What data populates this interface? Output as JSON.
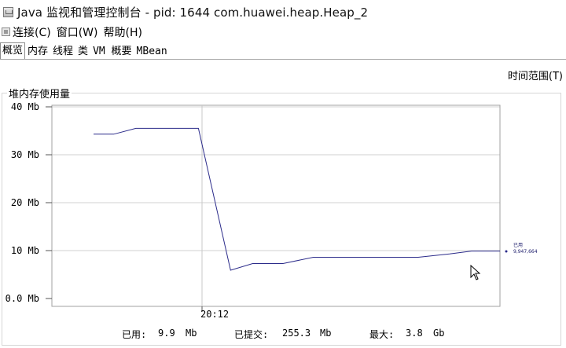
{
  "window": {
    "title": "Java 监视和管理控制台 - pid: 1644 com.huawei.heap.Heap_2"
  },
  "menu": {
    "items": [
      "连接(C)",
      "窗口(W)",
      "帮助(H)"
    ]
  },
  "tabs": [
    "概览",
    "内存",
    "线程",
    "类",
    "VM 概要",
    "MBean"
  ],
  "time_range_label": "时间范围(T)",
  "panel": {
    "title": "堆内存使用量",
    "legend_label": "已用",
    "legend_value": "9,947,664"
  },
  "stats": {
    "used_label": "已用:",
    "used_value": "9.9",
    "used_unit": "Mb",
    "committed_label": "已提交:",
    "committed_value": "255.3",
    "committed_unit": "Mb",
    "max_label": "最大:",
    "max_value": "3.8",
    "max_unit": "Gb"
  },
  "colors": {
    "series": "#2b2b8a",
    "plot_border": "#a0a0a0",
    "grid": "#d0d0d0"
  },
  "chart_data": {
    "type": "line",
    "title": "堆内存使用量",
    "ylabel": "",
    "xlabel": "",
    "y_tick_labels": [
      "0.0 Mb",
      "10 Mb",
      "20 Mb",
      "30 Mb",
      "40 Mb"
    ],
    "y_ticks": [
      0,
      10,
      20,
      30,
      40
    ],
    "ylim": [
      0,
      40
    ],
    "x_tick_labels": [
      "20:12"
    ],
    "grid": true,
    "series": [
      {
        "name": "已用",
        "points": [
          {
            "x": 0.0,
            "y": 34.3
          },
          {
            "x": 2.2,
            "y": 34.3
          },
          {
            "x": 4.6,
            "y": 35.5
          },
          {
            "x": 11.4,
            "y": 35.5
          },
          {
            "x": 14.9,
            "y": 5.9
          },
          {
            "x": 17.3,
            "y": 7.3
          },
          {
            "x": 20.6,
            "y": 7.3
          },
          {
            "x": 23.9,
            "y": 8.6
          },
          {
            "x": 35.3,
            "y": 8.6
          },
          {
            "x": 38.7,
            "y": 9.3
          },
          {
            "x": 41.1,
            "y": 9.9
          },
          {
            "x": 44.2,
            "y": 9.9
          }
        ]
      }
    ]
  }
}
